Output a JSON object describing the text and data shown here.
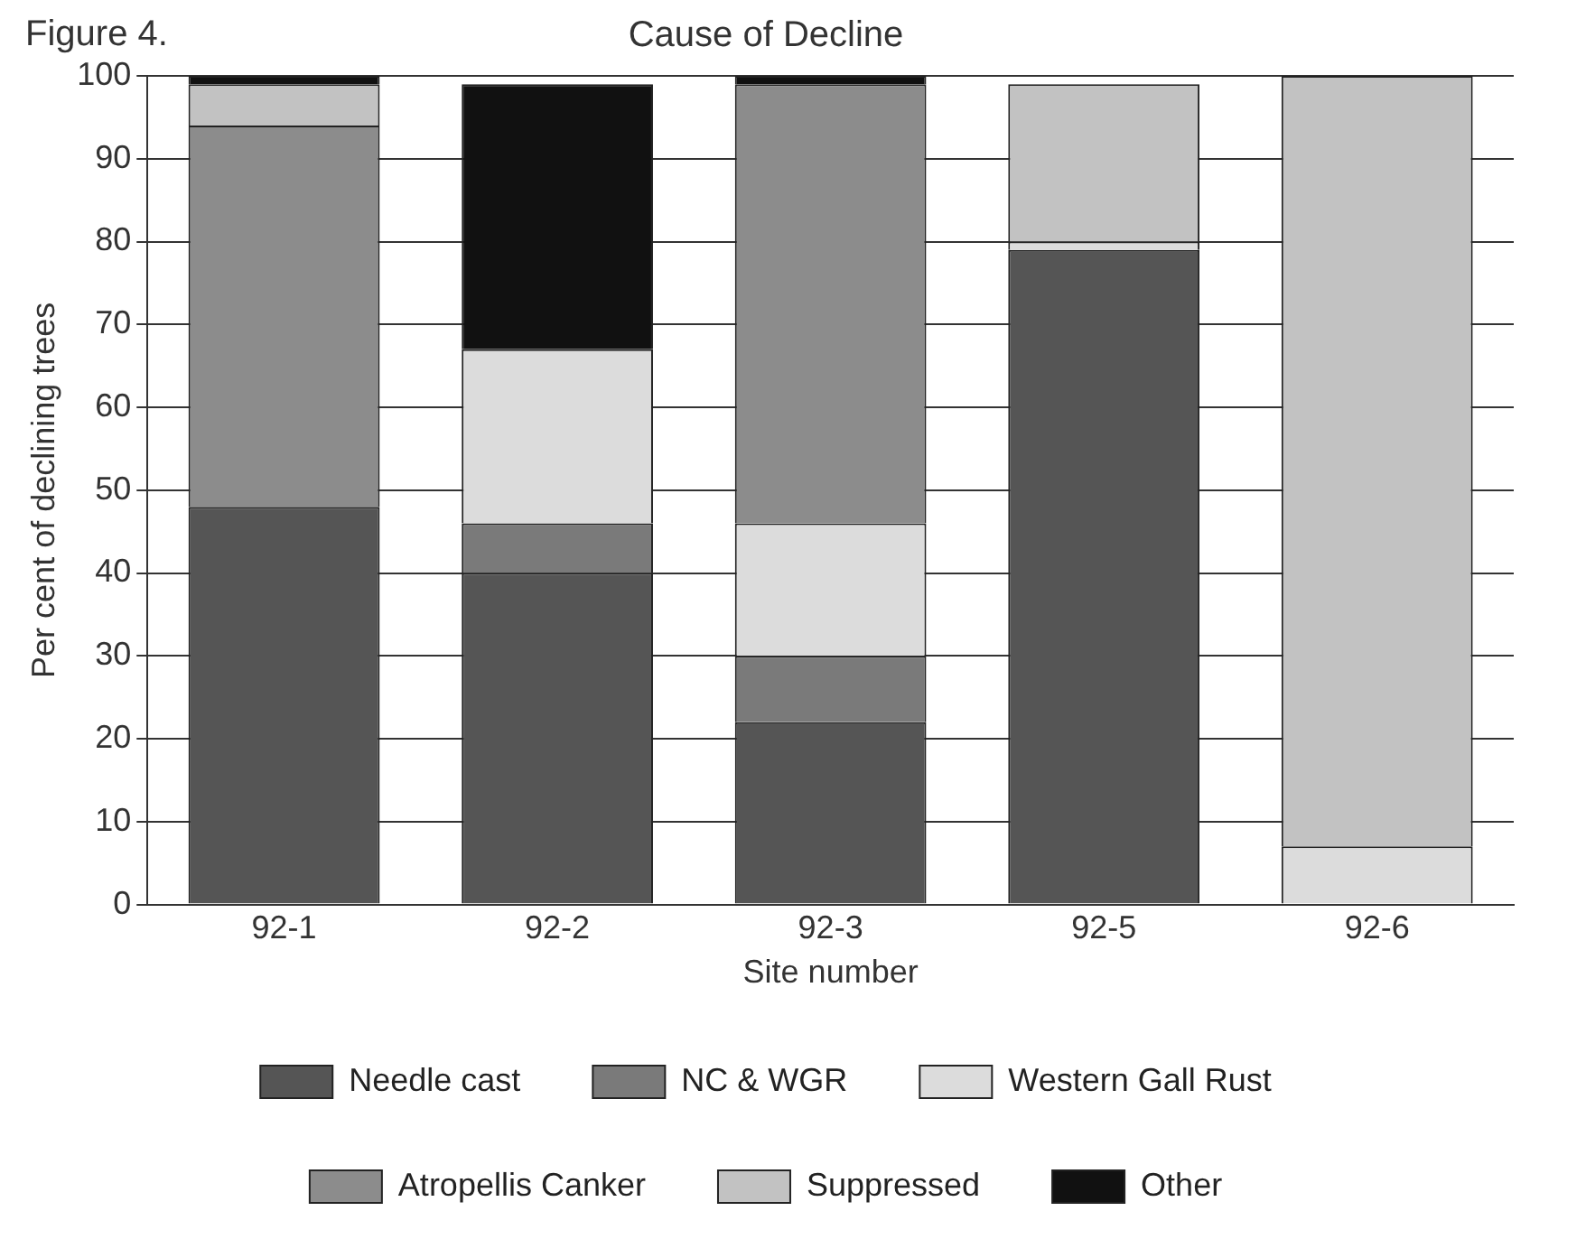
{
  "chart_data": {
    "type": "bar",
    "stacked": true,
    "title": "Cause of Decline",
    "annotations": [
      "Figure 4."
    ],
    "xlabel": "Site number",
    "ylabel": "Per cent of declining trees",
    "categories": [
      "92-1",
      "92-2",
      "92-3",
      "92-5",
      "92-6"
    ],
    "series": [
      {
        "name": "Needle cast",
        "color": "#555555",
        "values": [
          48,
          40,
          22,
          79,
          null
        ]
      },
      {
        "name": "NC & WGR",
        "color": "#7a7a7a",
        "values": [
          null,
          6,
          8,
          null,
          null
        ]
      },
      {
        "name": "Western Gall Rust",
        "color": "#dcdcdc",
        "values": [
          null,
          21,
          16,
          1,
          7
        ]
      },
      {
        "name": "Atropellis Canker",
        "color": "#8c8c8c",
        "values": [
          46,
          null,
          53,
          null,
          null
        ]
      },
      {
        "name": "Suppressed",
        "color": "#c2c2c2",
        "values": [
          5,
          null,
          null,
          19,
          93
        ]
      },
      {
        "name": "Other",
        "color": "#111111",
        "values": [
          1,
          32,
          1,
          null,
          null
        ]
      }
    ],
    "ylim": [
      0,
      100
    ],
    "yticks": [
      0,
      10,
      20,
      30,
      40,
      50,
      60,
      70,
      80,
      90,
      100
    ],
    "grid": "y",
    "legend": "bottom"
  }
}
